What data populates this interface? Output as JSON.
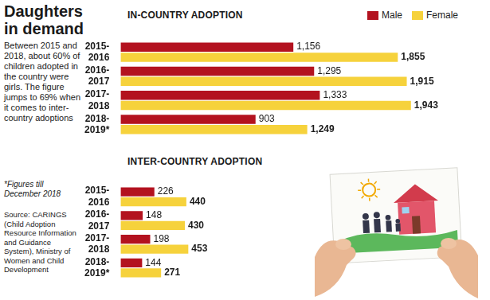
{
  "title": "Daughters in demand",
  "subtitle": "Between 2015 and 2018, about 60% of children adopted in the country were girls. The figure jumps to 69% when it comes to inter-country adoptions",
  "note": "*Figures till December 2018",
  "source": "Source: CARINGS (Child Adoption Resource Information and Guidance System), Ministry of Women and Child Development",
  "chart_data": [
    {
      "type": "bar",
      "title": "IN-COUNTRY ADOPTION",
      "orientation": "horizontal",
      "categories": [
        "2015-2016",
        "2016-2017",
        "2017-2018",
        "2018-2019*"
      ],
      "series": [
        {
          "name": "Male",
          "color": "#b3121f",
          "values": [
            1156,
            1295,
            1333,
            903
          ],
          "value_labels": [
            "1,156",
            "1,295",
            "1,333",
            "903"
          ]
        },
        {
          "name": "Female",
          "color": "#f6d23c",
          "values": [
            1855,
            1915,
            1943,
            1249
          ],
          "value_labels": [
            "1,855",
            "1,915",
            "1,943",
            "1,249"
          ]
        }
      ],
      "xlim": [
        0,
        2200
      ],
      "grid": false,
      "legend": "top-right",
      "data_labels": true,
      "tick_labels": "y"
    },
    {
      "type": "bar",
      "title": "INTER-COUNTRY ADOPTION",
      "orientation": "horizontal",
      "categories": [
        "2015-2016",
        "2016-2017",
        "2017-2018",
        "2018-2019*"
      ],
      "series": [
        {
          "name": "Male",
          "color": "#b3121f",
          "values": [
            226,
            148,
            198,
            144
          ]
        },
        {
          "name": "Female",
          "color": "#f6d23c",
          "values": [
            440,
            430,
            453,
            271
          ]
        }
      ],
      "xlim": [
        0,
        2200
      ],
      "grid": false,
      "data_labels": true,
      "tick_labels": "y"
    }
  ]
}
